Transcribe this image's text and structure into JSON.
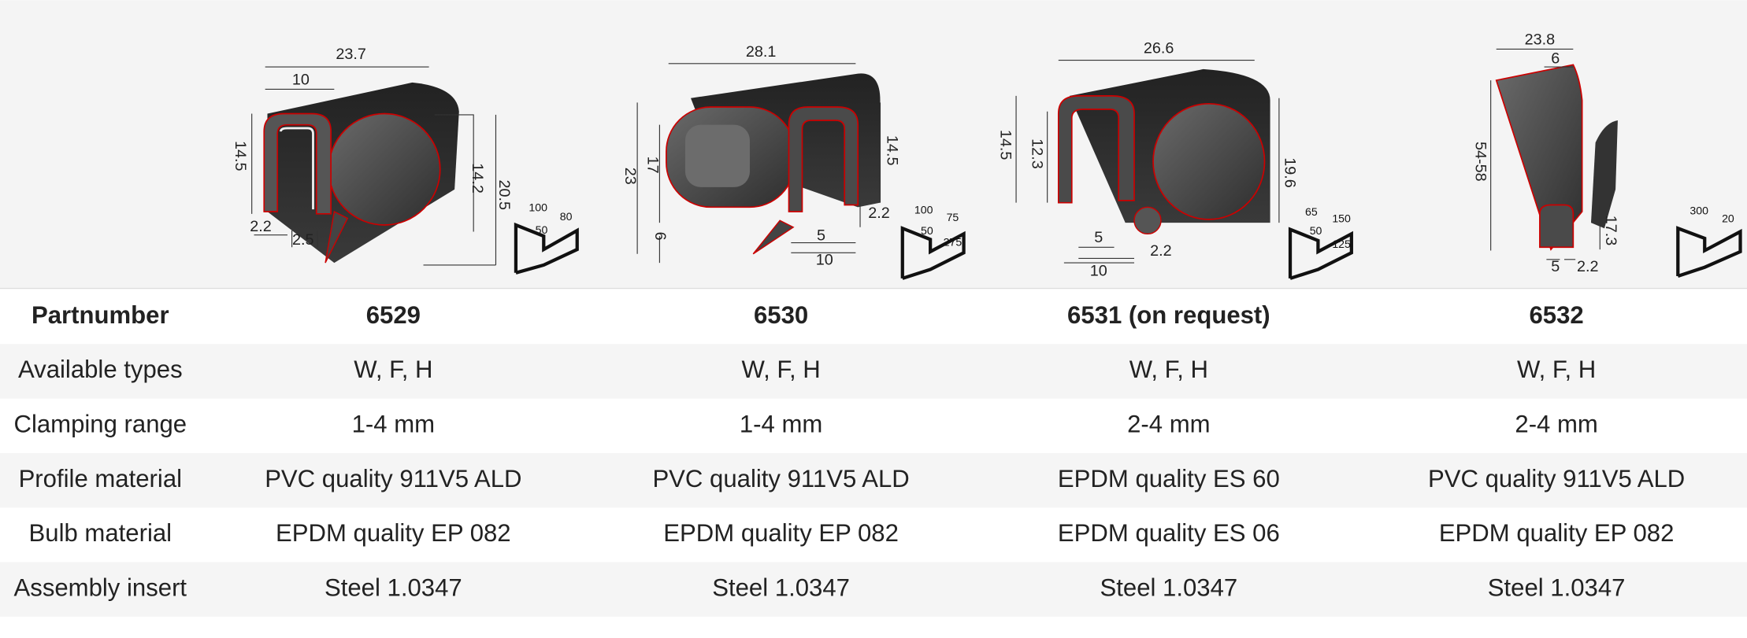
{
  "profiles": [
    {
      "dimensions": [
        "23.7",
        "10",
        "14.5",
        "14.2",
        "20.5",
        "2.2",
        "2.5"
      ],
      "mounting": [
        "100",
        "50",
        "80"
      ]
    },
    {
      "dimensions": [
        "28.1",
        "23",
        "17",
        "14.5",
        "6",
        "2.2",
        "5",
        "10"
      ],
      "mounting": [
        "100",
        "50",
        "75",
        "275"
      ]
    },
    {
      "dimensions": [
        "26.6",
        "14.5",
        "12.3",
        "19.6",
        "5",
        "2.2",
        "10"
      ],
      "mounting": [
        "65",
        "50",
        "150",
        "125"
      ]
    },
    {
      "dimensions": [
        "23.8",
        "6",
        "54-58",
        "17.3",
        "5",
        "2.2"
      ],
      "mounting": [
        "300",
        "20"
      ]
    }
  ],
  "table": {
    "header": [
      "Partnumber",
      "6529",
      "6530",
      "6531 (on request)",
      "6532"
    ],
    "rows": [
      [
        "Available types",
        "W, F, H",
        "W, F, H",
        "W, F, H",
        "W, F, H"
      ],
      [
        "Clamping range",
        "1-4 mm",
        "1-4 mm",
        "2-4 mm",
        "2-4 mm"
      ],
      [
        "Profile material",
        "PVC quality 911V5 ALD",
        "PVC quality 911V5 ALD",
        "EPDM quality ES 60",
        "PVC quality 911V5 ALD"
      ],
      [
        "Bulb material",
        "EPDM quality EP 082",
        "EPDM quality EP 082",
        "EPDM quality ES 06",
        "EPDM quality EP 082"
      ],
      [
        "Assembly insert",
        "Steel 1.0347",
        "Steel 1.0347",
        "Steel 1.0347",
        "Steel 1.0347"
      ]
    ]
  }
}
